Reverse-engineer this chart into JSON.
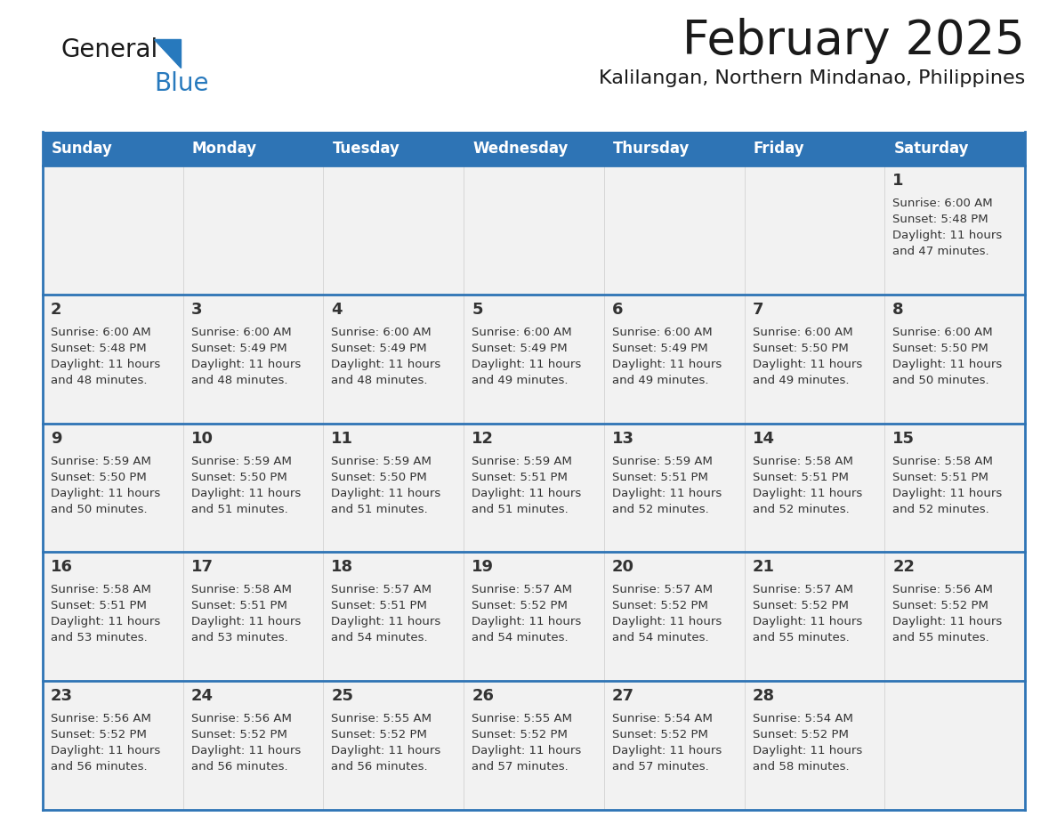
{
  "title": "February 2025",
  "subtitle": "Kalilangan, Northern Mindanao, Philippines",
  "header_bg": "#2E74B5",
  "header_text": "#FFFFFF",
  "cell_bg": "#F2F2F2",
  "separator_color": "#2E74B5",
  "text_color": "#333333",
  "days_of_week": [
    "Sunday",
    "Monday",
    "Tuesday",
    "Wednesday",
    "Thursday",
    "Friday",
    "Saturday"
  ],
  "calendar_data": [
    [
      null,
      null,
      null,
      null,
      null,
      null,
      {
        "day": "1",
        "sunrise": "6:00 AM",
        "sunset": "5:48 PM",
        "daylight_h": "11 hours",
        "daylight_m": "47 minutes."
      }
    ],
    [
      {
        "day": "2",
        "sunrise": "6:00 AM",
        "sunset": "5:48 PM",
        "daylight_h": "11 hours",
        "daylight_m": "48 minutes."
      },
      {
        "day": "3",
        "sunrise": "6:00 AM",
        "sunset": "5:49 PM",
        "daylight_h": "11 hours",
        "daylight_m": "48 minutes."
      },
      {
        "day": "4",
        "sunrise": "6:00 AM",
        "sunset": "5:49 PM",
        "daylight_h": "11 hours",
        "daylight_m": "48 minutes."
      },
      {
        "day": "5",
        "sunrise": "6:00 AM",
        "sunset": "5:49 PM",
        "daylight_h": "11 hours",
        "daylight_m": "49 minutes."
      },
      {
        "day": "6",
        "sunrise": "6:00 AM",
        "sunset": "5:49 PM",
        "daylight_h": "11 hours",
        "daylight_m": "49 minutes."
      },
      {
        "day": "7",
        "sunrise": "6:00 AM",
        "sunset": "5:50 PM",
        "daylight_h": "11 hours",
        "daylight_m": "49 minutes."
      },
      {
        "day": "8",
        "sunrise": "6:00 AM",
        "sunset": "5:50 PM",
        "daylight_h": "11 hours",
        "daylight_m": "50 minutes."
      }
    ],
    [
      {
        "day": "9",
        "sunrise": "5:59 AM",
        "sunset": "5:50 PM",
        "daylight_h": "11 hours",
        "daylight_m": "50 minutes."
      },
      {
        "day": "10",
        "sunrise": "5:59 AM",
        "sunset": "5:50 PM",
        "daylight_h": "11 hours",
        "daylight_m": "51 minutes."
      },
      {
        "day": "11",
        "sunrise": "5:59 AM",
        "sunset": "5:50 PM",
        "daylight_h": "11 hours",
        "daylight_m": "51 minutes."
      },
      {
        "day": "12",
        "sunrise": "5:59 AM",
        "sunset": "5:51 PM",
        "daylight_h": "11 hours",
        "daylight_m": "51 minutes."
      },
      {
        "day": "13",
        "sunrise": "5:59 AM",
        "sunset": "5:51 PM",
        "daylight_h": "11 hours",
        "daylight_m": "52 minutes."
      },
      {
        "day": "14",
        "sunrise": "5:58 AM",
        "sunset": "5:51 PM",
        "daylight_h": "11 hours",
        "daylight_m": "52 minutes."
      },
      {
        "day": "15",
        "sunrise": "5:58 AM",
        "sunset": "5:51 PM",
        "daylight_h": "11 hours",
        "daylight_m": "52 minutes."
      }
    ],
    [
      {
        "day": "16",
        "sunrise": "5:58 AM",
        "sunset": "5:51 PM",
        "daylight_h": "11 hours",
        "daylight_m": "53 minutes."
      },
      {
        "day": "17",
        "sunrise": "5:58 AM",
        "sunset": "5:51 PM",
        "daylight_h": "11 hours",
        "daylight_m": "53 minutes."
      },
      {
        "day": "18",
        "sunrise": "5:57 AM",
        "sunset": "5:51 PM",
        "daylight_h": "11 hours",
        "daylight_m": "54 minutes."
      },
      {
        "day": "19",
        "sunrise": "5:57 AM",
        "sunset": "5:52 PM",
        "daylight_h": "11 hours",
        "daylight_m": "54 minutes."
      },
      {
        "day": "20",
        "sunrise": "5:57 AM",
        "sunset": "5:52 PM",
        "daylight_h": "11 hours",
        "daylight_m": "54 minutes."
      },
      {
        "day": "21",
        "sunrise": "5:57 AM",
        "sunset": "5:52 PM",
        "daylight_h": "11 hours",
        "daylight_m": "55 minutes."
      },
      {
        "day": "22",
        "sunrise": "5:56 AM",
        "sunset": "5:52 PM",
        "daylight_h": "11 hours",
        "daylight_m": "55 minutes."
      }
    ],
    [
      {
        "day": "23",
        "sunrise": "5:56 AM",
        "sunset": "5:52 PM",
        "daylight_h": "11 hours",
        "daylight_m": "56 minutes."
      },
      {
        "day": "24",
        "sunrise": "5:56 AM",
        "sunset": "5:52 PM",
        "daylight_h": "11 hours",
        "daylight_m": "56 minutes."
      },
      {
        "day": "25",
        "sunrise": "5:55 AM",
        "sunset": "5:52 PM",
        "daylight_h": "11 hours",
        "daylight_m": "56 minutes."
      },
      {
        "day": "26",
        "sunrise": "5:55 AM",
        "sunset": "5:52 PM",
        "daylight_h": "11 hours",
        "daylight_m": "57 minutes."
      },
      {
        "day": "27",
        "sunrise": "5:54 AM",
        "sunset": "5:52 PM",
        "daylight_h": "11 hours",
        "daylight_m": "57 minutes."
      },
      {
        "day": "28",
        "sunrise": "5:54 AM",
        "sunset": "5:52 PM",
        "daylight_h": "11 hours",
        "daylight_m": "58 minutes."
      },
      null
    ]
  ],
  "logo_color_general": "#1a1a1a",
  "logo_color_blue": "#2779BD",
  "logo_triangle_color": "#2779BD"
}
